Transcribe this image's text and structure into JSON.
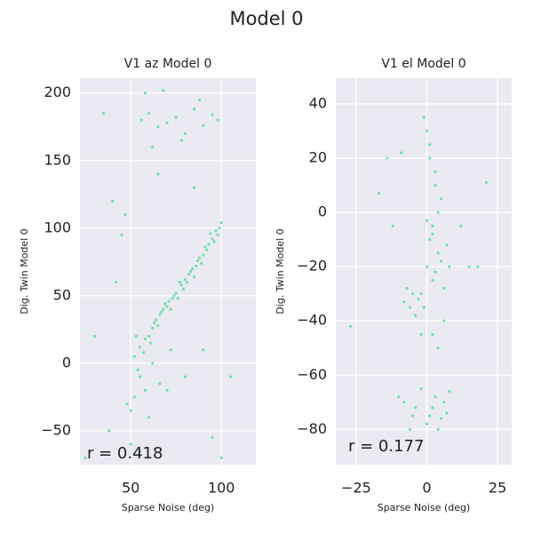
{
  "title": "Model 0",
  "chart_data": [
    {
      "type": "scatter",
      "title": "V1 az Model 0",
      "xlabel": "Sparse Noise (deg)",
      "ylabel": "Dig. Twin Model 0",
      "annotation": "r = 0.418",
      "xlim": [
        22,
        119
      ],
      "ylim": [
        -75,
        211
      ],
      "xticks": [
        50,
        100
      ],
      "yticks": [
        {
          "value": -50,
          "label": "−50"
        },
        0,
        50,
        100,
        150,
        200
      ],
      "grid": true,
      "series": [
        {
          "color": "#2edc80",
          "x": [
            52,
            55,
            58,
            60,
            62,
            63,
            65,
            66,
            68,
            70,
            71,
            72,
            74,
            75,
            76,
            78,
            79,
            80,
            81,
            82,
            84,
            85,
            86,
            88,
            89,
            90,
            92,
            93,
            95,
            96,
            97,
            98,
            99,
            100,
            54,
            57,
            61,
            64,
            67,
            69,
            73,
            77,
            83,
            87,
            91,
            94,
            56,
            60,
            65,
            70,
            75,
            80,
            85,
            90,
            95,
            58,
            68,
            78,
            88,
            98,
            62,
            35,
            40,
            45,
            48,
            30,
            50,
            55,
            60,
            70,
            80,
            90,
            95,
            100,
            105,
            42,
            65,
            85,
            25,
            38,
            47,
            55,
            58,
            62,
            66,
            72,
            52,
            50,
            53
          ],
          "values": [
            5,
            12,
            18,
            20,
            26,
            30,
            28,
            36,
            40,
            42,
            46,
            40,
            50,
            52,
            48,
            58,
            55,
            62,
            60,
            66,
            70,
            64,
            72,
            78,
            74,
            80,
            84,
            88,
            92,
            90,
            98,
            95,
            100,
            104,
            -5,
            8,
            15,
            32,
            38,
            44,
            48,
            60,
            68,
            76,
            86,
            96,
            180,
            185,
            175,
            178,
            182,
            170,
            188,
            176,
            184,
            200,
            202,
            165,
            195,
            180,
            160,
            185,
            120,
            95,
            -30,
            20,
            -60,
            -65,
            -40,
            -20,
            -10,
            10,
            -55,
            -70,
            -10,
            60,
            140,
            130,
            -70,
            -50,
            110,
            -10,
            -20,
            0,
            -15,
            10,
            -25,
            -35,
            20
          ]
        }
      ]
    },
    {
      "type": "scatter",
      "title": "V1 el Model 0",
      "xlabel": "Sparse Noise (deg)",
      "ylabel": "Dig. Twin Model 0",
      "annotation": "r = 0.177",
      "xlim": [
        -32.2,
        30
      ],
      "ylim": [
        -93,
        49.5
      ],
      "xticks": [
        {
          "value": -25,
          "label": "−25"
        },
        0,
        25
      ],
      "yticks": [
        {
          "value": -80,
          "label": "−80"
        },
        {
          "value": -60,
          "label": "−60"
        },
        {
          "value": -40,
          "label": "−40"
        },
        {
          "value": -20,
          "label": "−20"
        },
        0,
        20,
        40
      ],
      "grid": true,
      "series": [
        {
          "color": "#2edc80",
          "x": [
            0,
            2,
            4,
            -2,
            1,
            3,
            5,
            6,
            -1,
            -3,
            -5,
            -4,
            2,
            4,
            7,
            8,
            -6,
            -8,
            -7,
            3,
            1,
            0,
            5,
            6,
            2,
            -2,
            4,
            3,
            1,
            -1,
            0,
            2,
            -10,
            -8,
            -5,
            -2,
            0,
            2,
            4,
            6,
            8,
            -4,
            1,
            3,
            5,
            -6,
            7,
            21,
            -17,
            -27,
            -12,
            -14,
            12,
            15,
            18,
            -9
          ],
          "values": [
            -20,
            -25,
            -15,
            -30,
            -10,
            -22,
            -18,
            -28,
            -35,
            -32,
            -30,
            -38,
            -5,
            0,
            -12,
            -20,
            -35,
            -33,
            -28,
            10,
            20,
            30,
            5,
            -40,
            -45,
            -45,
            -50,
            15,
            25,
            35,
            -3,
            -8,
            -68,
            -70,
            -75,
            -65,
            -78,
            -72,
            -80,
            -70,
            -66,
            -72,
            -75,
            -68,
            -76,
            -80,
            -74,
            11,
            7,
            -42,
            -5,
            20,
            -5,
            -20,
            -20,
            22
          ]
        }
      ]
    }
  ]
}
